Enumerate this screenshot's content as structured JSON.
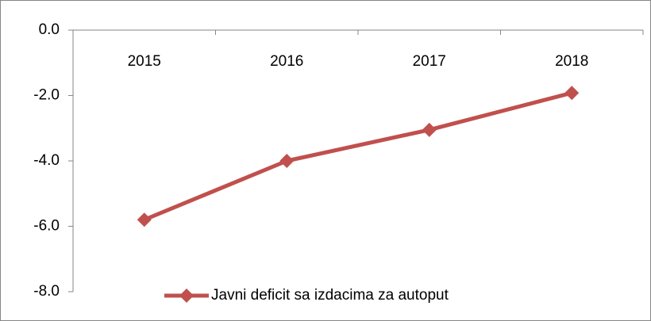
{
  "chart_data": {
    "type": "line",
    "categories": [
      "2015",
      "2016",
      "2017",
      "2018"
    ],
    "series": [
      {
        "name": "Javni deficit sa izdacima za autoput",
        "color": "#c0504d",
        "values": [
          -5.8,
          -4.0,
          -3.05,
          -1.92
        ]
      }
    ],
    "ylim": [
      -8,
      0
    ],
    "yticks": [
      {
        "value": 0,
        "label": "0.0"
      },
      {
        "value": -2,
        "label": "-2.0"
      },
      {
        "value": -4,
        "label": "-4.0"
      },
      {
        "value": -6,
        "label": "-6.0"
      },
      {
        "value": -8,
        "label": "-8.0"
      }
    ],
    "legend": "bottom"
  }
}
